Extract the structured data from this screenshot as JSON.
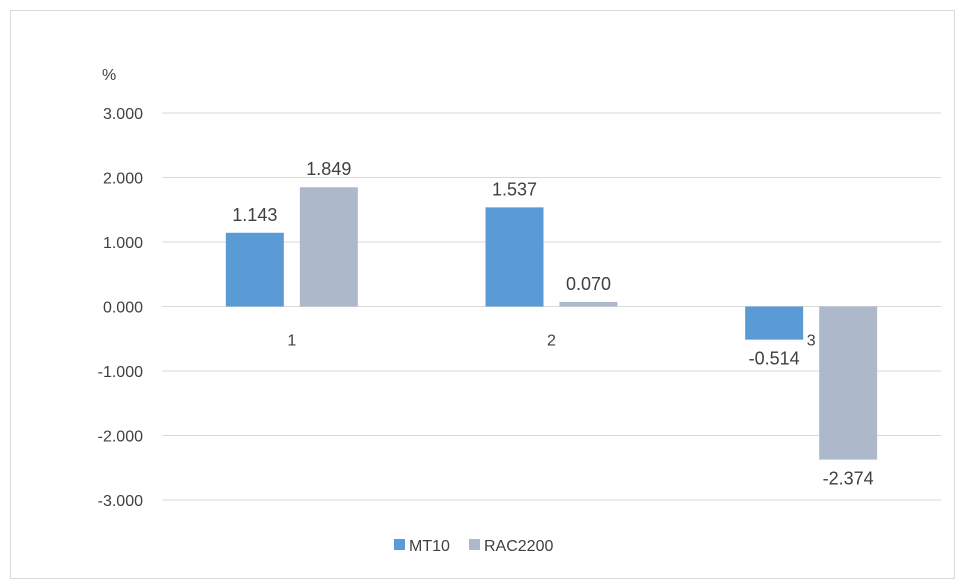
{
  "chart_data": {
    "type": "bar",
    "ylabel": "%",
    "categories": [
      "1",
      "2",
      "3"
    ],
    "series": [
      {
        "name": "MT10",
        "color": "#5b9bd5",
        "values": [
          1.143,
          1.537,
          -0.514
        ],
        "labels": [
          "1.143",
          "1.537",
          "-0.514"
        ]
      },
      {
        "name": "RAC2200",
        "color": "#adb9ca",
        "values": [
          1.849,
          0.07,
          -2.374
        ],
        "labels": [
          "1.849",
          "0.070",
          "-2.374"
        ]
      }
    ],
    "ylim": [
      -3,
      3
    ],
    "yticks": [
      "3.000",
      "2.000",
      "1.000",
      "0.000",
      "-1.000",
      "-2.000",
      "-3.000"
    ],
    "ytick_values": [
      3,
      2,
      1,
      0,
      -1,
      -2,
      -3
    ],
    "grid": true,
    "legend_position": "bottom"
  }
}
